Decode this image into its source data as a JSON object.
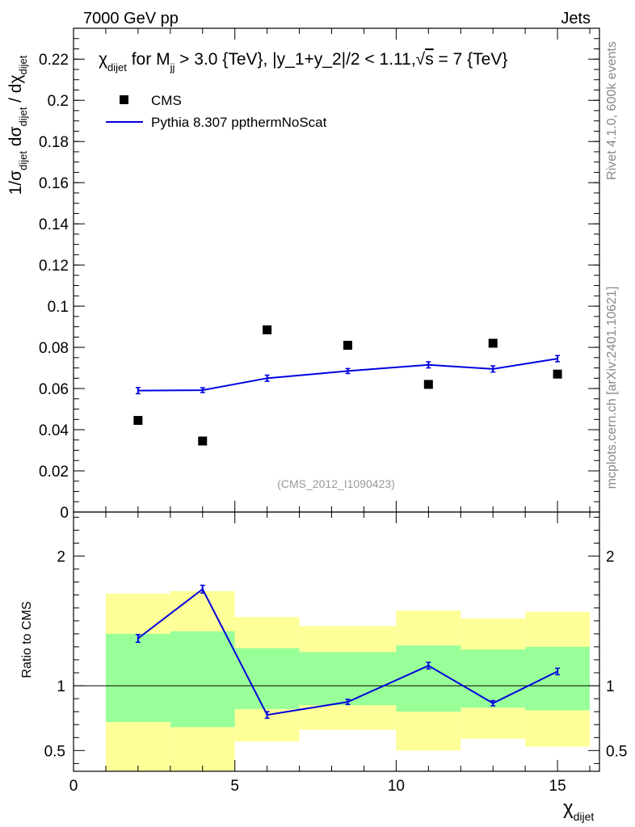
{
  "header": {
    "left": "7000 GeV pp",
    "right": "Jets",
    "side_top": "Rivet 4.1.0,  600k events",
    "side_bottom": "mcplots.cern.ch [arXiv:2401.10621]",
    "watermark": "(CMS_2012_I1090423)"
  },
  "title": {
    "chi": "χ",
    "chi_sub": "dijet",
    "t1": " for M",
    "m_sub": "jj",
    "t2": " > 3.0 {TeV}, |y_1+y_2|/2 < 1.11,",
    "sqrt": "√",
    "t3": "s",
    "t4": " = 7 {TeV}"
  },
  "legend": {
    "data": "CMS",
    "mc": "Pythia 8.307 ppthermNoScat"
  },
  "axes": {
    "y_main": "1/σ_dijet dσ_dijet / dχ_dijet",
    "y_main_parts": [
      "1/σ",
      "dijet",
      " dσ",
      "dijet",
      " / dχ",
      "dijet"
    ],
    "y_ratio": "Ratio to CMS",
    "x_label": "χ",
    "x_sub": "dijet"
  },
  "chart_data": [
    {
      "type": "scatter",
      "panel": "main",
      "xlim": [
        0,
        16.3
      ],
      "ylim": [
        0,
        0.235
      ],
      "y_ticks": [
        0,
        0.02,
        0.04,
        0.06,
        0.08,
        0.1,
        0.12,
        0.14,
        0.16,
        0.18,
        0.2,
        0.22
      ],
      "y_tick_labels": [
        "0",
        "0.02",
        "0.04",
        "0.06",
        "0.08",
        "0.1",
        "0.12",
        "0.14",
        "0.16",
        "0.18",
        "0.2",
        "0.22"
      ],
      "series": [
        {
          "name": "CMS",
          "style": "markers",
          "color": "#000000",
          "x": [
            2,
            4,
            6,
            8.5,
            11,
            13,
            15
          ],
          "y": [
            0.0445,
            0.0345,
            0.0885,
            0.081,
            0.062,
            0.082,
            0.067
          ]
        },
        {
          "name": "Pythia 8.307 ppthermNoScat",
          "style": "line",
          "color": "#0000e0",
          "x": [
            2,
            4,
            6,
            8.5,
            11,
            13,
            15
          ],
          "y": [
            0.059,
            0.0592,
            0.065,
            0.0685,
            0.0715,
            0.0695,
            0.0745
          ],
          "yerr": [
            0.0015,
            0.0012,
            0.0015,
            0.0012,
            0.0015,
            0.0015,
            0.0015
          ]
        }
      ]
    },
    {
      "type": "line",
      "panel": "ratio",
      "xlim": [
        0,
        16.3
      ],
      "ylim": [
        0.34,
        2.34
      ],
      "x_ticks": [
        0,
        5,
        10,
        15
      ],
      "x_tick_labels": [
        "0",
        "5",
        "10",
        "15"
      ],
      "y_ticks": [
        0.5,
        1,
        2
      ],
      "y_tick_labels": [
        "0.5",
        "1",
        "2"
      ],
      "bands": {
        "bin_edges": [
          1,
          3,
          5,
          7,
          10,
          12,
          14,
          16
        ],
        "yellow_lo": [
          0.34,
          0.34,
          0.57,
          0.66,
          0.5,
          0.59,
          0.53
        ],
        "yellow_hi": [
          1.71,
          1.73,
          1.53,
          1.46,
          1.58,
          1.52,
          1.57
        ],
        "green_lo": [
          0.72,
          0.68,
          0.82,
          0.85,
          0.8,
          0.83,
          0.81
        ],
        "green_hi": [
          1.4,
          1.42,
          1.29,
          1.26,
          1.31,
          1.28,
          1.3
        ],
        "yellow_color": "#ffff99",
        "green_color": "#99ff99"
      },
      "series": [
        {
          "name": "Pythia 8.307 ppthermNoScat / CMS",
          "color": "#0000e0",
          "x": [
            2,
            4,
            6,
            8.5,
            11,
            13,
            15
          ],
          "y": [
            1.365,
            1.745,
            0.775,
            0.875,
            1.155,
            0.865,
            1.11
          ],
          "yerr": [
            0.03,
            0.03,
            0.025,
            0.02,
            0.025,
            0.02,
            0.025
          ]
        }
      ],
      "reference_line": 1
    }
  ]
}
